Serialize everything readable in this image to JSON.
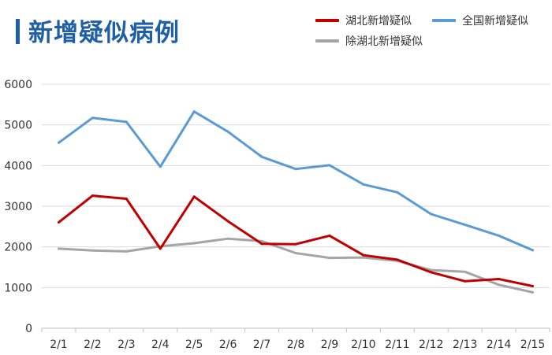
{
  "title": "新增疑似病例",
  "chart_data": {
    "type": "line",
    "title": "新增疑似病例",
    "xlabel": "",
    "ylabel": "",
    "categories": [
      "2/1",
      "2/2",
      "2/3",
      "2/4",
      "2/5",
      "2/6",
      "2/7",
      "2/8",
      "2/9",
      "2/10",
      "2/11",
      "2/12",
      "2/13",
      "2/14",
      "2/15"
    ],
    "ylim": [
      0,
      6000
    ],
    "yticks": [
      0,
      1000,
      2000,
      3000,
      4000,
      5000,
      6000
    ],
    "grid": true,
    "legend_position": "top-right",
    "series": [
      {
        "name": "湖北新增疑似",
        "color": "#c00000",
        "values": [
          2606,
          3260,
          3183,
          1957,
          3237,
          2630,
          2074,
          2067,
          2277,
          1796,
          1685,
          1377,
          1156,
          1209,
          1036
        ]
      },
      {
        "name": "全国新增疑似",
        "color": "#5b9bd5",
        "values": [
          4562,
          5173,
          5072,
          3971,
          5328,
          4833,
          4214,
          3916,
          4008,
          3536,
          3342,
          2807,
          2544,
          2277,
          1918
        ]
      },
      {
        "name": "除湖北新增疑似",
        "color": "#a5a5a5",
        "values": [
          1956,
          1913,
          1889,
          2014,
          2091,
          2203,
          2140,
          1849,
          1731,
          1740,
          1657,
          1430,
          1388,
          1068,
          882
        ]
      }
    ]
  }
}
